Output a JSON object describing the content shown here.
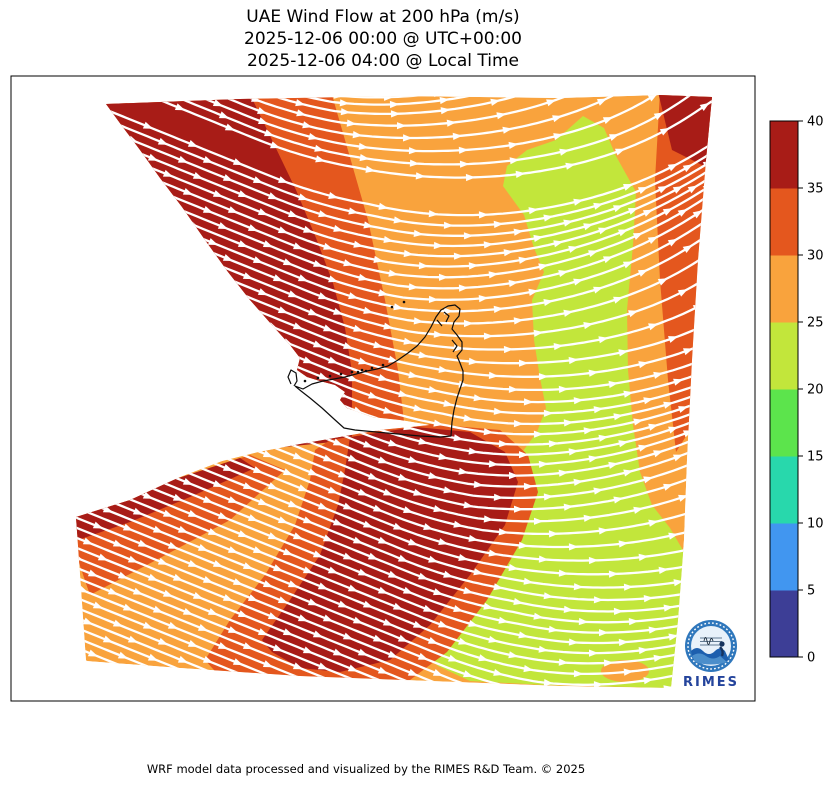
{
  "title": {
    "line1": "UAE Wind Flow at 200 hPa (m/s)",
    "line2": "2025-12-06 00:00 @ UTC+00:00",
    "line3": "2025-12-06 04:00 @ Local Time"
  },
  "footer": {
    "credit": "WRF model data processed and visualized by the RIMES R&D Team. © 2025"
  },
  "logo": {
    "label": "RIMES"
  },
  "colorbar": {
    "ticks": [
      "0",
      "5",
      "10",
      "15",
      "20",
      "25",
      "30",
      "35",
      "40"
    ],
    "segment_colors_low_to_high": [
      "#3d3e96",
      "#4196f0",
      "#28d8ac",
      "#5ce44c",
      "#c2e63b",
      "#f9a33d",
      "#e4571e",
      "#a81c17"
    ]
  },
  "chart_data": {
    "type": "heatmap",
    "title": "UAE Wind Flow at 200 hPa (m/s)",
    "variable": "wind speed",
    "units": "m/s",
    "pressure_level_hPa": 200,
    "region": "UAE and surrounding Gulf region",
    "valid_time_utc": "2025-12-06 00:00",
    "valid_time_local": "2025-12-06 04:00",
    "utc_offset_display": "UTC+00:00",
    "contour_levels": [
      0,
      5,
      10,
      15,
      20,
      25,
      30,
      35,
      40
    ],
    "contour_colors": [
      "#3d3e96",
      "#4196f0",
      "#28d8ac",
      "#5ce44c",
      "#c2e63b",
      "#f9a33d",
      "#e4571e",
      "#a81c17"
    ],
    "colorbar_ticks": [
      0,
      5,
      10,
      15,
      20,
      25,
      30,
      35,
      40
    ],
    "observed_speed_range_m_s": [
      20,
      40
    ],
    "speed_regions": [
      {
        "area": "northwest band along upper-left domain edge",
        "speed_m_s": "35-40"
      },
      {
        "area": "band just east of the northwest edge and far right domain edge (top half)",
        "speed_m_s": "30-35"
      },
      {
        "area": "broad central band and top-right corner belt",
        "speed_m_s": "25-30"
      },
      {
        "area": "large eastern / southeastern region and tongue near top right",
        "speed_m_s": "20-25"
      },
      {
        "area": "diagonal band south of the UAE coast and lower-left wedge crest",
        "speed_m_s": "35-40"
      }
    ],
    "flow_description": "Westerly jet: streamlines enter from the WNW (tilted down-right) over the northwest, become zonal (due east) over the center, and veer ENE (tilted up-right) toward the eastern domain edge; drawn as dense white arrows.",
    "overlay": "white streamline arrows; black UAE coastline, islands and land borders; white areas are outside the model data domain",
    "legend_position": "vertical colorbar at right, 0-40 m/s, ticks every 5"
  }
}
